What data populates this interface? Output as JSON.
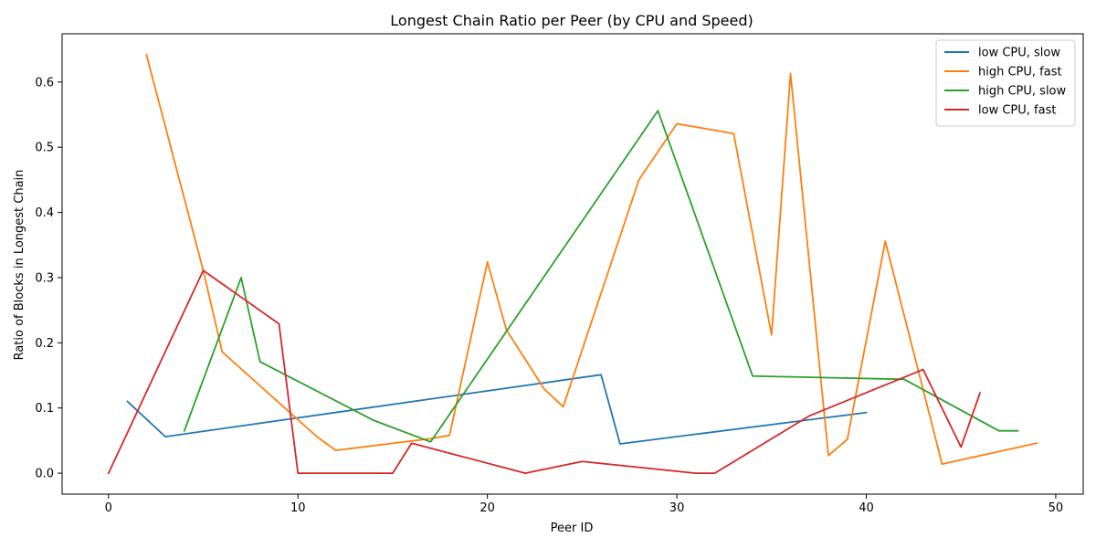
{
  "chart_data": {
    "type": "line",
    "title": "Longest Chain Ratio per Peer (by CPU and Speed)",
    "xlabel": "Peer ID",
    "ylabel": "Ratio of Blocks in Longest Chain",
    "xlim": [
      -2.45,
      51.45
    ],
    "ylim": [
      -0.0321,
      0.674
    ],
    "xticks": [
      0,
      10,
      20,
      30,
      40,
      50
    ],
    "yticks": [
      0.0,
      0.1,
      0.2,
      0.3,
      0.4,
      0.5,
      0.6
    ],
    "ytick_labels": [
      "0.0",
      "0.1",
      "0.2",
      "0.3",
      "0.4",
      "0.5",
      "0.6"
    ],
    "grid": false,
    "legend_position": "top-right",
    "series": [
      {
        "name": "low CPU, slow",
        "color": "#1f77b4",
        "points": [
          [
            1,
            0.11
          ],
          [
            3,
            0.056
          ],
          [
            26,
            0.151
          ],
          [
            27,
            0.045
          ],
          [
            40,
            0.093
          ]
        ]
      },
      {
        "name": "high CPU, fast",
        "color": "#ff7f0e",
        "points": [
          [
            2,
            0.642
          ],
          [
            5,
            0.311
          ],
          [
            6,
            0.186
          ],
          [
            11,
            0.056
          ],
          [
            12,
            0.035
          ],
          [
            17,
            0.053
          ],
          [
            18,
            0.058
          ],
          [
            20,
            0.324
          ],
          [
            21,
            0.22
          ],
          [
            23,
            0.129
          ],
          [
            24,
            0.102
          ],
          [
            28,
            0.45
          ],
          [
            30,
            0.536
          ],
          [
            33,
            0.521
          ],
          [
            35,
            0.212
          ],
          [
            36,
            0.613
          ],
          [
            38,
            0.027
          ],
          [
            39,
            0.052
          ],
          [
            41,
            0.356
          ],
          [
            44,
            0.014
          ],
          [
            49,
            0.046
          ]
        ]
      },
      {
        "name": "high CPU, slow",
        "color": "#2ca02c",
        "points": [
          [
            4,
            0.065
          ],
          [
            7,
            0.3
          ],
          [
            8,
            0.171
          ],
          [
            14,
            0.081
          ],
          [
            17,
            0.048
          ],
          [
            29,
            0.556
          ],
          [
            34,
            0.149
          ],
          [
            42,
            0.144
          ],
          [
            47,
            0.065
          ],
          [
            48,
            0.065
          ]
        ]
      },
      {
        "name": "low CPU, fast",
        "color": "#d62728",
        "points": [
          [
            0,
            0.0
          ],
          [
            5,
            0.311
          ],
          [
            9,
            0.229
          ],
          [
            10,
            0.0
          ],
          [
            15,
            0.0
          ],
          [
            16,
            0.046
          ],
          [
            22,
            0.0
          ],
          [
            25,
            0.018
          ],
          [
            31,
            0.0
          ],
          [
            32,
            0.0
          ],
          [
            37,
            0.088
          ],
          [
            43,
            0.159
          ],
          [
            45,
            0.04
          ],
          [
            46,
            0.123
          ]
        ]
      }
    ]
  }
}
